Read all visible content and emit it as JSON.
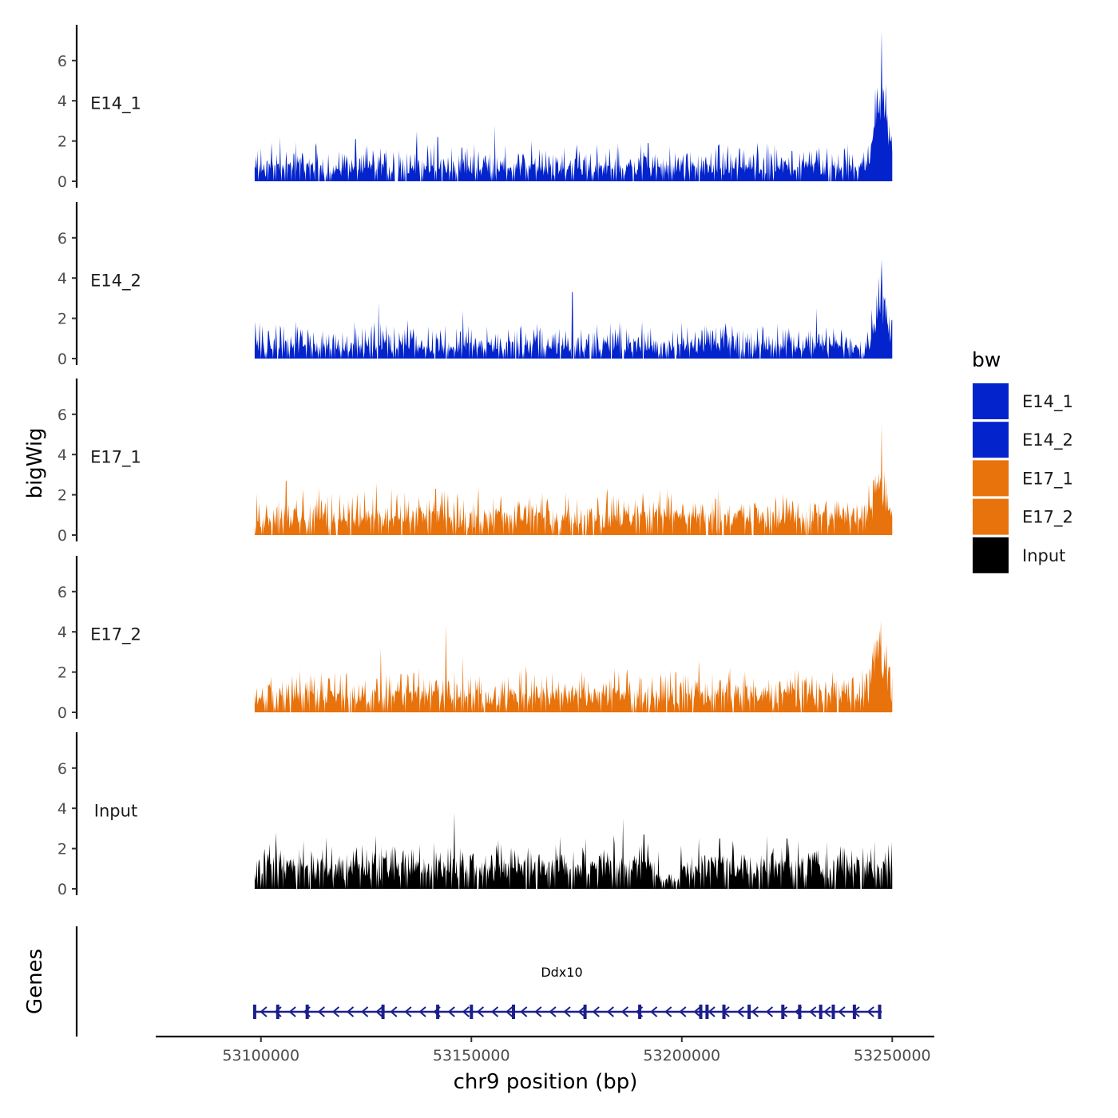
{
  "chart_data": {
    "type": "area",
    "chromosome": "chr9",
    "xlabel": "chr9 position (bp)",
    "ylabel_tracks": "bigWig",
    "ylabel_genes": "Genes",
    "xlim": [
      53075000,
      53260000
    ],
    "data_range": [
      53098500,
      53250000
    ],
    "xticks": [
      53100000,
      53150000,
      53200000,
      53250000
    ],
    "xtick_labels": [
      "53100000",
      "53150000",
      "53200000",
      "53250000"
    ],
    "ylim": [
      0,
      7.7
    ],
    "yticks": [
      0,
      2,
      4,
      6
    ],
    "ytick_labels": [
      "0",
      "2",
      "4",
      "6"
    ],
    "tracks": [
      {
        "name": "E14_1",
        "color": "#0324CC",
        "baseline": 0.6,
        "noise": 0.55,
        "spikes": [
          [
            53104500,
            2.2
          ],
          [
            53122500,
            2.1
          ],
          [
            53137000,
            2.5
          ],
          [
            53142000,
            2.2
          ],
          [
            53155500,
            2.8
          ],
          [
            53192000,
            1.9
          ],
          [
            53211000,
            1.8
          ],
          [
            53232000,
            1.6
          ],
          [
            53246000,
            4.6
          ],
          [
            53247500,
            7.5
          ],
          [
            53248500,
            4.8
          ]
        ],
        "peak": {
          "center": 53247500,
          "width": 2200,
          "height": 3.2
        }
      },
      {
        "name": "E14_2",
        "color": "#0324CC",
        "baseline": 0.55,
        "noise": 0.55,
        "spikes": [
          [
            53103500,
            1.7
          ],
          [
            53128000,
            2.8
          ],
          [
            53148000,
            2.4
          ],
          [
            53174000,
            3.3
          ],
          [
            53200000,
            1.8
          ],
          [
            53232000,
            2.5
          ],
          [
            53247500,
            4.9
          ]
        ],
        "peak": {
          "center": 53247300,
          "width": 2000,
          "height": 2.3
        }
      },
      {
        "name": "E17_1",
        "color": "#E8720C",
        "baseline": 0.8,
        "noise": 0.6,
        "spikes": [
          [
            53106000,
            2.7
          ],
          [
            53127500,
            2.6
          ],
          [
            53141500,
            2.3
          ],
          [
            53143000,
            2.2
          ],
          [
            53180000,
            1.9
          ],
          [
            53208000,
            1.8
          ],
          [
            53247500,
            5.5
          ],
          [
            53246000,
            3.0
          ]
        ],
        "peak": {
          "center": 53247000,
          "width": 2200,
          "height": 1.7
        }
      },
      {
        "name": "E17_2",
        "color": "#E8720C",
        "baseline": 0.75,
        "noise": 0.6,
        "spikes": [
          [
            53128500,
            3.2
          ],
          [
            53144000,
            4.4
          ],
          [
            53148000,
            2.8
          ],
          [
            53163000,
            2.3
          ],
          [
            53184000,
            2.2
          ],
          [
            53204000,
            2.6
          ],
          [
            53247000,
            4.1
          ],
          [
            53246000,
            3.6
          ]
        ],
        "peak": {
          "center": 53247000,
          "width": 2400,
          "height": 2.2
        }
      },
      {
        "name": "Input",
        "color": "#000000",
        "baseline": 1.0,
        "noise": 0.6,
        "spikes": [
          [
            53103500,
            2.8
          ],
          [
            53146000,
            3.8
          ],
          [
            53171000,
            2.6
          ],
          [
            53186000,
            3.5
          ],
          [
            53191000,
            2.7
          ],
          [
            53209000,
            2.5
          ],
          [
            53225000,
            2.5
          ]
        ],
        "peak": null,
        "gap": [
          53194500,
          53199500
        ]
      }
    ],
    "legend": {
      "title": "bw",
      "position": "right",
      "entries": [
        {
          "label": "E14_1",
          "color": "#0324CC"
        },
        {
          "label": "E14_2",
          "color": "#0324CC"
        },
        {
          "label": "E17_1",
          "color": "#E8720C"
        },
        {
          "label": "E17_2",
          "color": "#E8720C"
        },
        {
          "label": "Input",
          "color": "#000000"
        }
      ]
    },
    "gene": {
      "name": "Ddx10",
      "strand": "-",
      "start": 53098500,
      "end": 53247500,
      "color": "#1B1F8A",
      "exons": [
        53098500,
        53104000,
        53111000,
        53129000,
        53142000,
        53150000,
        53160000,
        53177000,
        53190000,
        53204500,
        53206000,
        53210000,
        53216000,
        53224000,
        53228000,
        53233000,
        53236000,
        53241000,
        53247000
      ]
    }
  }
}
